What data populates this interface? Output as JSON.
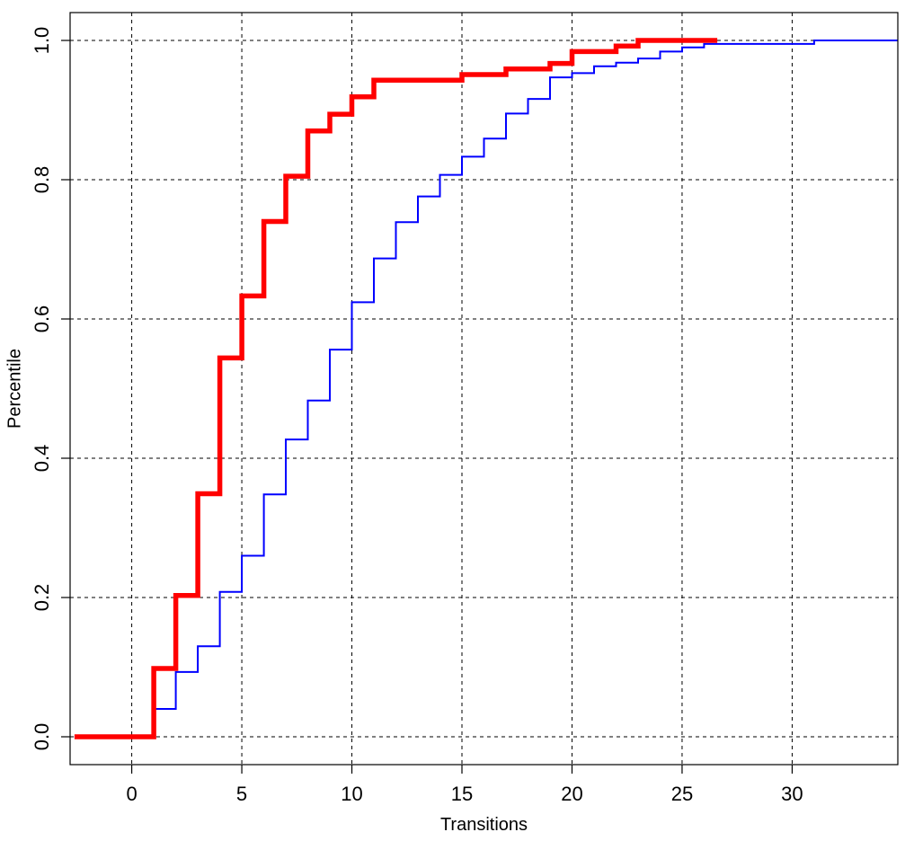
{
  "chart_data": {
    "type": "line",
    "step": true,
    "xlabel": "Transitions",
    "ylabel": "Percentile",
    "xlim": [
      -2.8,
      34.8
    ],
    "ylim": [
      -0.04,
      1.04
    ],
    "xticks": [
      0,
      5,
      10,
      15,
      20,
      25,
      30
    ],
    "yticks": [
      0.0,
      0.2,
      0.4,
      0.6,
      0.8,
      1.0
    ],
    "xtick_labels": [
      "0",
      "5",
      "10",
      "15",
      "20",
      "25",
      "30"
    ],
    "ytick_labels": [
      "0.0",
      "0.2",
      "0.4",
      "0.6",
      "0.8",
      "1.0"
    ],
    "grid": true,
    "legend": "none",
    "series": [
      {
        "color": "#0000ff",
        "style": "thin",
        "x": [
          -2.6,
          1,
          2,
          3,
          4,
          5,
          6,
          7,
          8,
          9,
          10,
          11,
          12,
          13,
          14,
          15,
          16,
          17,
          18,
          19,
          20,
          21,
          22,
          23,
          24,
          25,
          26,
          31,
          34.8
        ],
        "y": [
          0.0,
          0.04,
          0.093,
          0.13,
          0.208,
          0.26,
          0.348,
          0.427,
          0.483,
          0.556,
          0.624,
          0.687,
          0.739,
          0.776,
          0.807,
          0.833,
          0.859,
          0.895,
          0.916,
          0.947,
          0.953,
          0.963,
          0.968,
          0.974,
          0.984,
          0.99,
          0.995,
          1.0,
          1.0
        ]
      },
      {
        "color": "#ff0000",
        "style": "thick",
        "x": [
          -2.6,
          1,
          2,
          3,
          4,
          5,
          6,
          7,
          8,
          9,
          10,
          11,
          15,
          17,
          19,
          20,
          22,
          23,
          26.6
        ],
        "y": [
          0.0,
          0.098,
          0.203,
          0.349,
          0.544,
          0.633,
          0.74,
          0.805,
          0.87,
          0.894,
          0.919,
          0.943,
          0.951,
          0.959,
          0.967,
          0.984,
          0.992,
          1.0,
          1.0
        ]
      }
    ]
  }
}
